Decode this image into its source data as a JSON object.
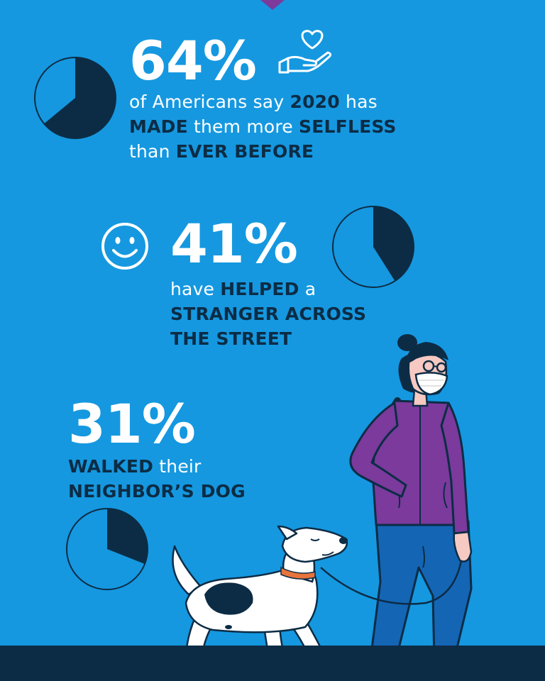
{
  "colors": {
    "background": "#1598e0",
    "pie_fill": "#0c2c45",
    "text": "#ffffff",
    "highlight": "#0c2c45",
    "ground": "#0c2c45"
  },
  "stats": [
    {
      "value": "64%",
      "icon": "heart-in-hand-icon",
      "line1": [
        {
          "t": "of Americans say ",
          "h": false
        },
        {
          "t": "2020",
          "h": true
        },
        {
          "t": " has",
          "h": false
        }
      ],
      "line2": [
        {
          "t": "MADE",
          "h": true
        },
        {
          "t": " them more ",
          "h": false
        },
        {
          "t": "SELFLESS",
          "h": true
        }
      ],
      "line3": [
        {
          "t": "than ",
          "h": false
        },
        {
          "t": "EVER BEFORE",
          "h": true
        }
      ]
    },
    {
      "value": "41%",
      "icon": "smiley-face-icon",
      "line1": [
        {
          "t": "have ",
          "h": false
        },
        {
          "t": "HELPED",
          "h": true
        },
        {
          "t": " a",
          "h": false
        }
      ],
      "line2": [
        {
          "t": "STRANGER ACROSS",
          "h": true
        }
      ],
      "line3": [
        {
          "t": "THE STREET",
          "h": true
        }
      ]
    },
    {
      "value": "31%",
      "icon": "",
      "line1": [
        {
          "t": "WALKED",
          "h": true
        },
        {
          "t": " their",
          "h": false
        }
      ],
      "line2": [
        {
          "t": "NEIGHBOR’S DOG",
          "h": true
        }
      ]
    }
  ],
  "chart_data": [
    {
      "type": "pie",
      "values": [
        64,
        36
      ],
      "start": "top"
    },
    {
      "type": "pie",
      "values": [
        41,
        59
      ],
      "start": "top"
    },
    {
      "type": "pie",
      "values": [
        31,
        69
      ],
      "start": "top"
    }
  ],
  "illustration": [
    "woman-with-face-mask-and-backpack",
    "white-dog-with-black-spot-on-leash"
  ]
}
